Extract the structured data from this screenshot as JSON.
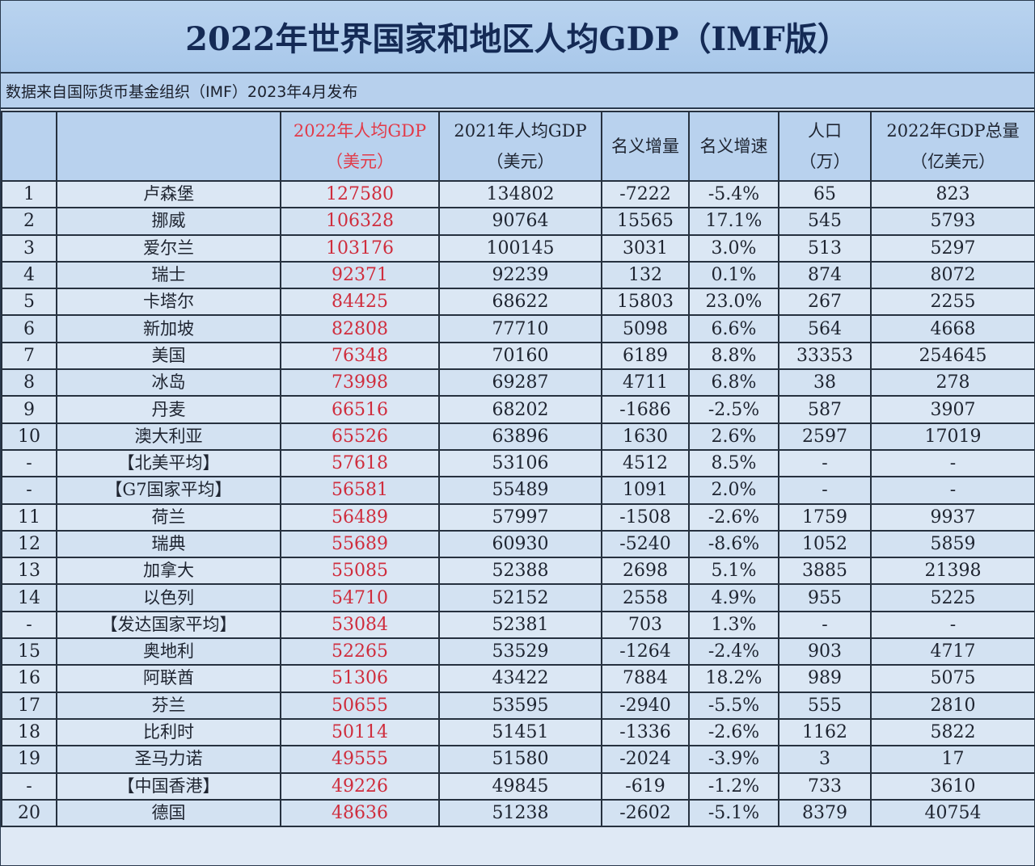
{
  "title": "2022年世界国家和地区人均GDP（IMF版）",
  "subtitle": "数据来自国际货币基金组织（IMF）2023年4月发布",
  "colors": {
    "accent_red": "#cf2d3d",
    "header_bg": "#b9d2ee",
    "title_text": "#142a55"
  },
  "headers": [
    {
      "line1": "",
      "line2": ""
    },
    {
      "line1": "",
      "line2": ""
    },
    {
      "line1": "2022年人均GDP",
      "line2": "（美元）"
    },
    {
      "line1": "2021年人均GDP",
      "line2": "（美元）"
    },
    {
      "line1": "名义增量",
      "line2": ""
    },
    {
      "line1": "名义增速",
      "line2": ""
    },
    {
      "line1": "人口",
      "line2": "（万）"
    },
    {
      "line1": "2022年GDP总量",
      "line2": "（亿美元）"
    }
  ],
  "rows": [
    [
      "1",
      "卢森堡",
      "127580",
      "134802",
      "-7222",
      "-5.4%",
      "65",
      "823"
    ],
    [
      "2",
      "挪威",
      "106328",
      "90764",
      "15565",
      "17.1%",
      "545",
      "5793"
    ],
    [
      "3",
      "爱尔兰",
      "103176",
      "100145",
      "3031",
      "3.0%",
      "513",
      "5297"
    ],
    [
      "4",
      "瑞士",
      "92371",
      "92239",
      "132",
      "0.1%",
      "874",
      "8072"
    ],
    [
      "5",
      "卡塔尔",
      "84425",
      "68622",
      "15803",
      "23.0%",
      "267",
      "2255"
    ],
    [
      "6",
      "新加坡",
      "82808",
      "77710",
      "5098",
      "6.6%",
      "564",
      "4668"
    ],
    [
      "7",
      "美国",
      "76348",
      "70160",
      "6189",
      "8.8%",
      "33353",
      "254645"
    ],
    [
      "8",
      "冰岛",
      "73998",
      "69287",
      "4711",
      "6.8%",
      "38",
      "278"
    ],
    [
      "9",
      "丹麦",
      "66516",
      "68202",
      "-1686",
      "-2.5%",
      "587",
      "3907"
    ],
    [
      "10",
      "澳大利亚",
      "65526",
      "63896",
      "1630",
      "2.6%",
      "2597",
      "17019"
    ],
    [
      "-",
      "【北美平均】",
      "57618",
      "53106",
      "4512",
      "8.5%",
      "-",
      "-"
    ],
    [
      "-",
      "【G7国家平均】",
      "56581",
      "55489",
      "1091",
      "2.0%",
      "-",
      "-"
    ],
    [
      "11",
      "荷兰",
      "56489",
      "57997",
      "-1508",
      "-2.6%",
      "1759",
      "9937"
    ],
    [
      "12",
      "瑞典",
      "55689",
      "60930",
      "-5240",
      "-8.6%",
      "1052",
      "5859"
    ],
    [
      "13",
      "加拿大",
      "55085",
      "52388",
      "2698",
      "5.1%",
      "3885",
      "21398"
    ],
    [
      "14",
      "以色列",
      "54710",
      "52152",
      "2558",
      "4.9%",
      "955",
      "5225"
    ],
    [
      "-",
      "【发达国家平均】",
      "53084",
      "52381",
      "703",
      "1.3%",
      "-",
      "-"
    ],
    [
      "15",
      "奥地利",
      "52265",
      "53529",
      "-1264",
      "-2.4%",
      "903",
      "4717"
    ],
    [
      "16",
      "阿联酋",
      "51306",
      "43422",
      "7884",
      "18.2%",
      "989",
      "5075"
    ],
    [
      "17",
      "芬兰",
      "50655",
      "53595",
      "-2940",
      "-5.5%",
      "555",
      "2810"
    ],
    [
      "18",
      "比利时",
      "50114",
      "51451",
      "-1336",
      "-2.6%",
      "1162",
      "5822"
    ],
    [
      "19",
      "圣马力诺",
      "49555",
      "51580",
      "-2024",
      "-3.9%",
      "3",
      "17"
    ],
    [
      "-",
      "【中国香港】",
      "49226",
      "49845",
      "-619",
      "-1.2%",
      "733",
      "3610"
    ],
    [
      "20",
      "德国",
      "48636",
      "51238",
      "-2602",
      "-5.1%",
      "8379",
      "40754"
    ]
  ]
}
